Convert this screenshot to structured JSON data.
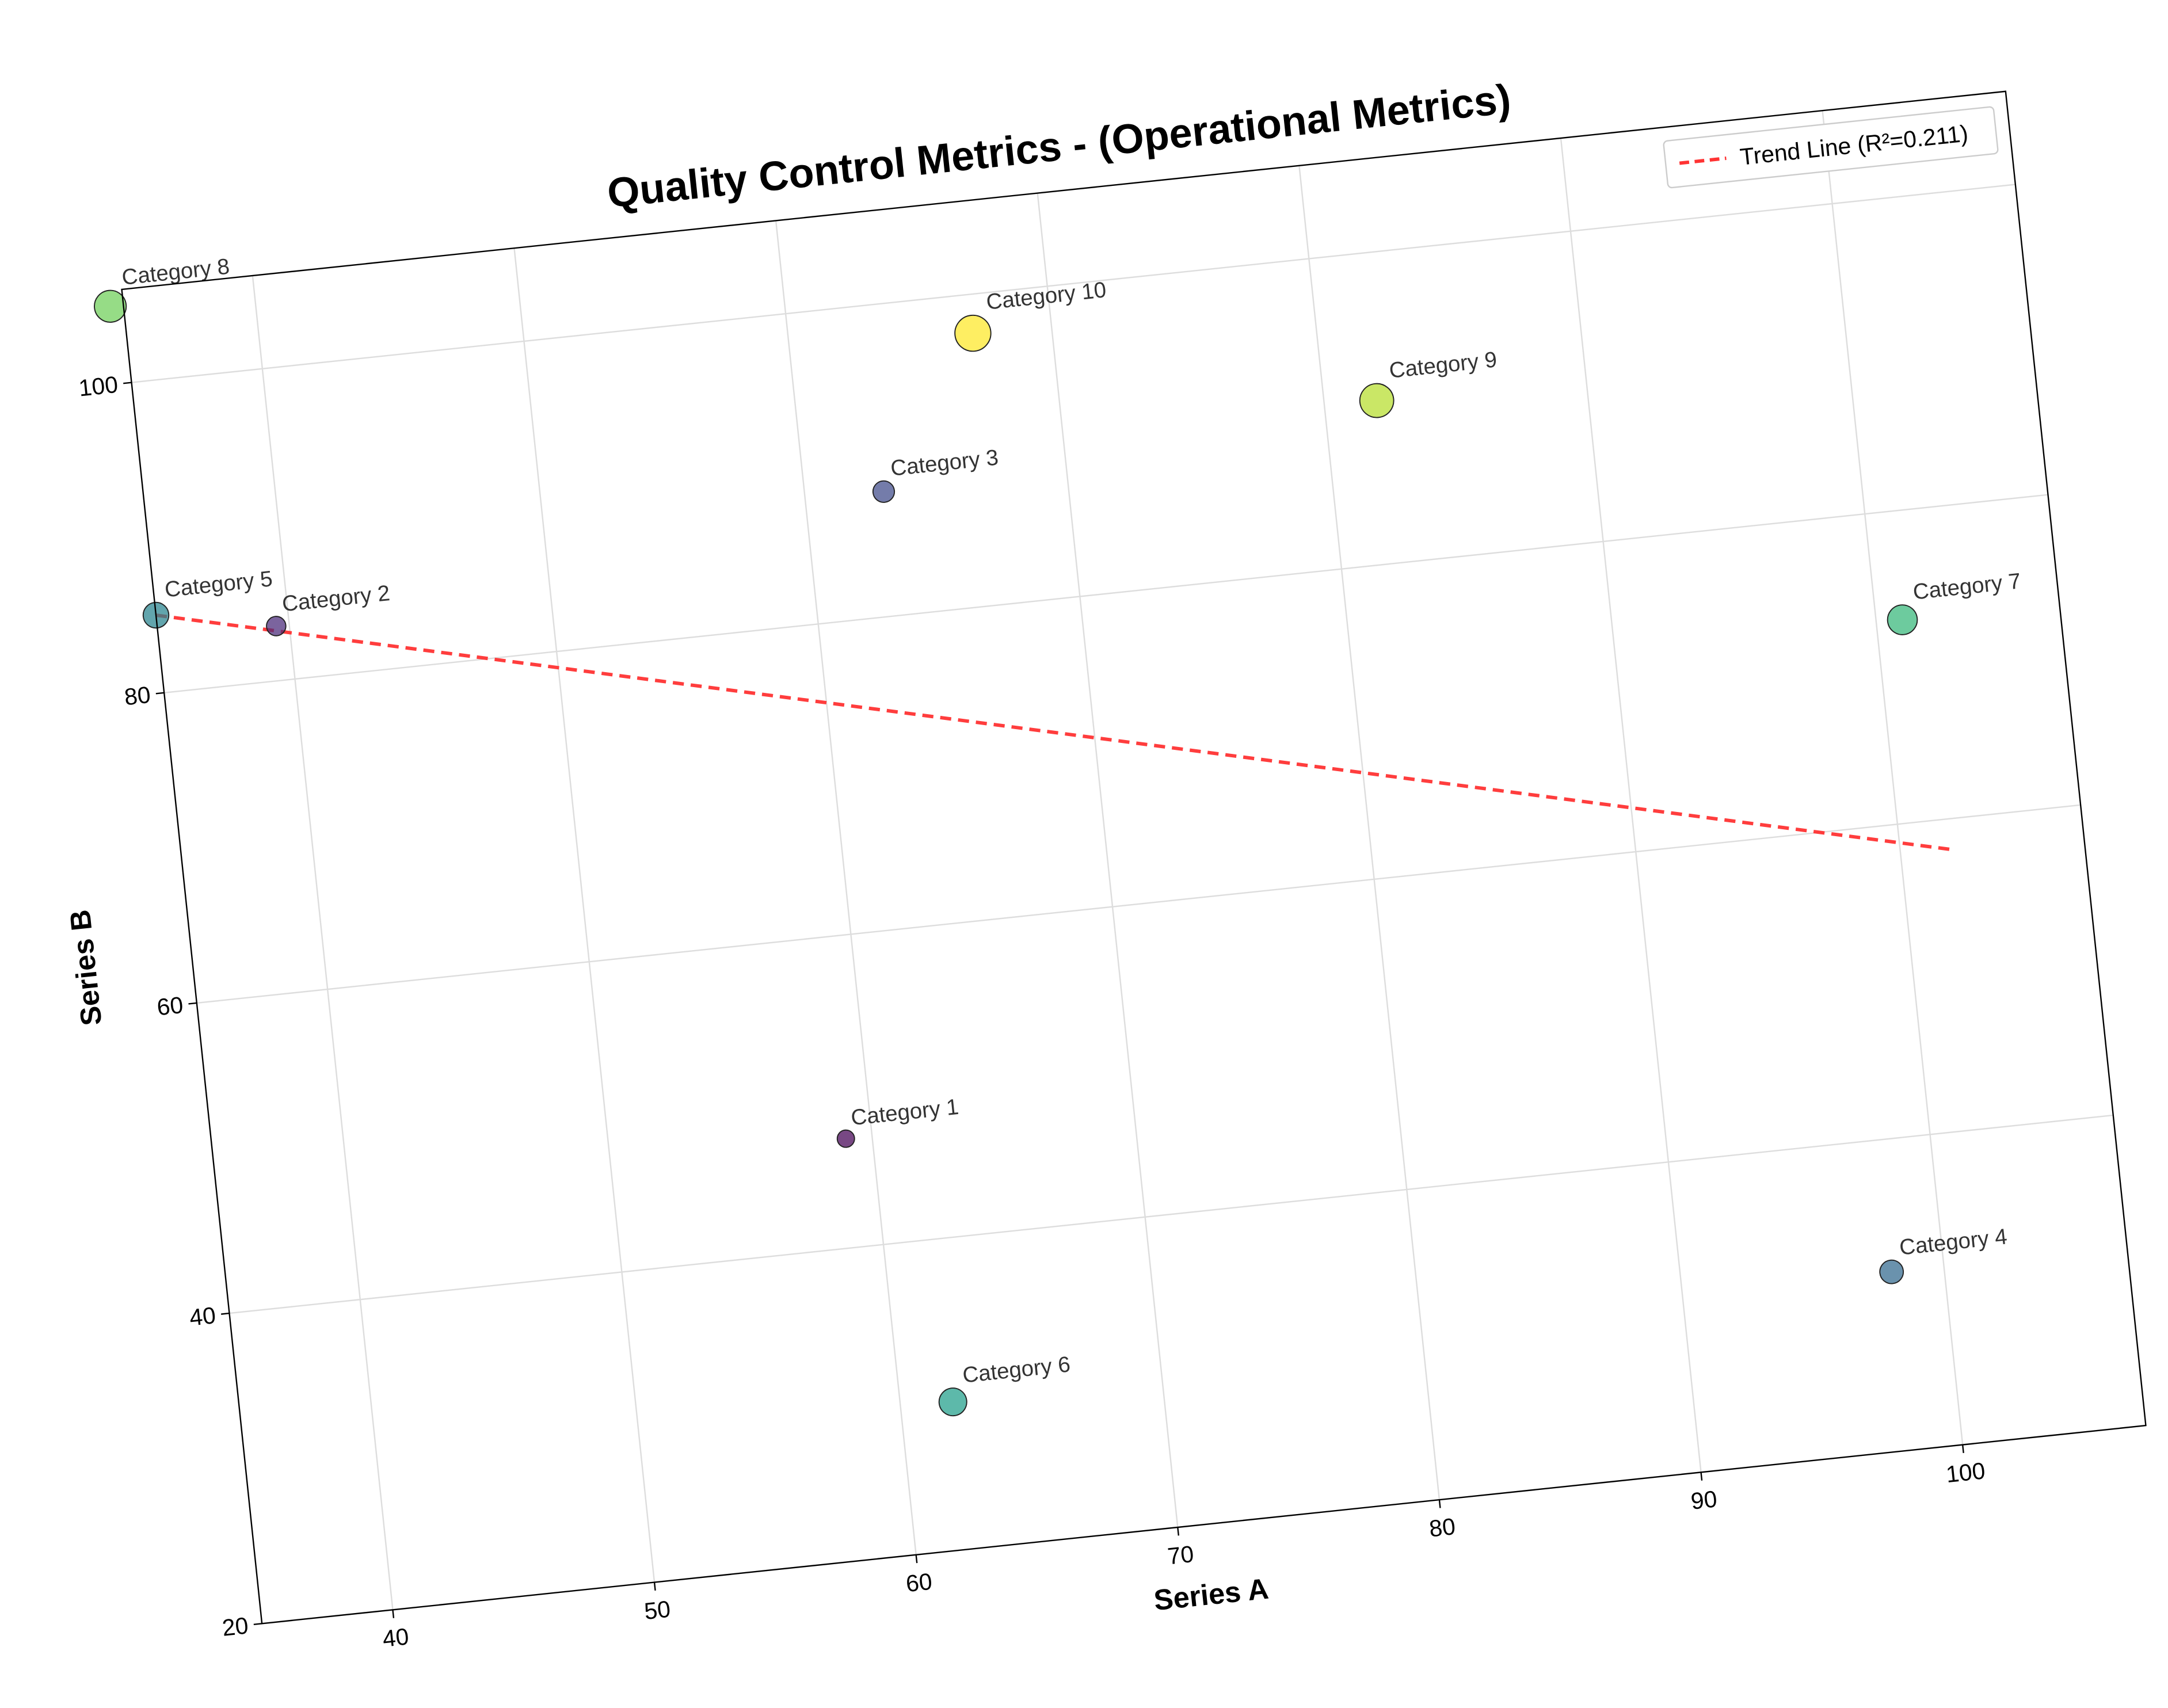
{
  "chart_data": {
    "type": "scatter",
    "title": "Quality Control Metrics - (Operational Metrics)",
    "xlabel": "Series A",
    "ylabel": "Series B",
    "xlim": [
      35,
      107
    ],
    "ylim": [
      20,
      106
    ],
    "x_ticks": [
      "40",
      "50",
      "60",
      "70",
      "80",
      "90",
      "100"
    ],
    "y_ticks": [
      "20",
      "40",
      "60",
      "80",
      "100"
    ],
    "grid": true,
    "legend_position": "top-right",
    "rotation_deg": -6,
    "points": [
      {
        "label": "Category 1",
        "x": 59,
        "y": 47,
        "size": 1,
        "color": "#440154"
      },
      {
        "label": "Category 2",
        "x": 39.5,
        "y": 83.5,
        "size": 2,
        "color": "#482878"
      },
      {
        "label": "Category 3",
        "x": 63,
        "y": 88,
        "size": 3,
        "color": "#3e4989"
      },
      {
        "label": "Category 4",
        "x": 98,
        "y": 31.5,
        "size": 4,
        "color": "#31688e"
      },
      {
        "label": "Category 5",
        "x": 35,
        "y": 85,
        "size": 5,
        "color": "#26828e"
      },
      {
        "label": "Category 6",
        "x": 62,
        "y": 29.5,
        "size": 6,
        "color": "#1f9e89"
      },
      {
        "label": "Category 7",
        "x": 101,
        "y": 73,
        "size": 7,
        "color": "#35b779"
      },
      {
        "label": "Category 8",
        "x": 34.5,
        "y": 105,
        "size": 8,
        "color": "#6ece58"
      },
      {
        "label": "Category 9",
        "x": 82,
        "y": 90.5,
        "size": 9,
        "color": "#b5de2b"
      },
      {
        "label": "Category 10",
        "x": 67,
        "y": 97.5,
        "size": 10,
        "color": "#fde725"
      }
    ],
    "trend_line": {
      "name": "Trend Line (R²=0.211)",
      "x": [
        35,
        102
      ],
      "y": [
        85,
        58
      ],
      "color": "#ff3333",
      "style": "dashed"
    }
  }
}
